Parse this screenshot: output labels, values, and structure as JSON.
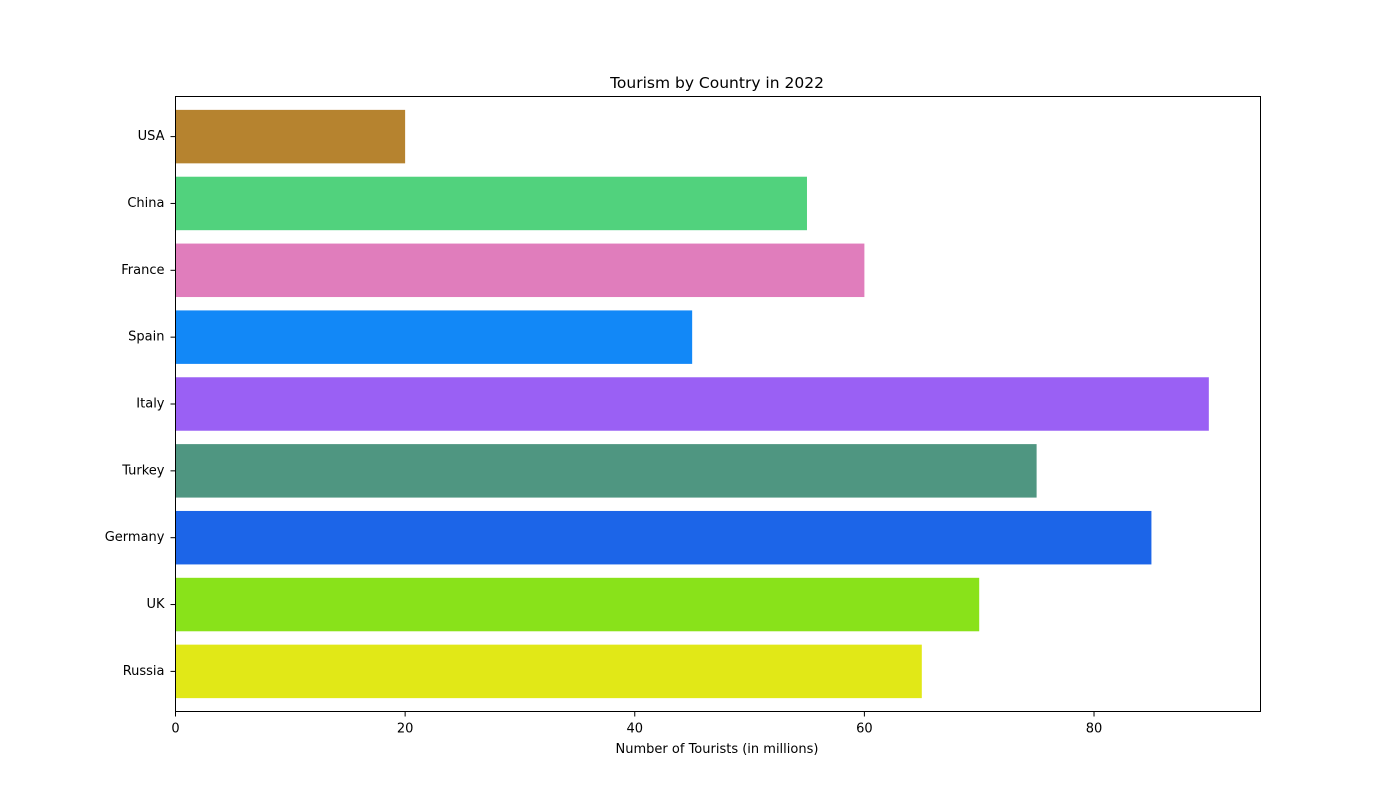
{
  "chart_data": {
    "type": "bar",
    "orientation": "horizontal",
    "title": "Tourism by Country in 2022",
    "xlabel": "Number of Tourists (in millions)",
    "ylabel": "",
    "categories": [
      "Russia",
      "UK",
      "Germany",
      "Turkey",
      "Italy",
      "Spain",
      "France",
      "China",
      "USA"
    ],
    "values": [
      65,
      70,
      85,
      75,
      90,
      45,
      60,
      55,
      20
    ],
    "colors": [
      "#e1e817",
      "#89e21a",
      "#1c65e8",
      "#4f9681",
      "#9a60f4",
      "#1288f7",
      "#e07dbc",
      "#51d27d",
      "#b6832f"
    ],
    "xlim": [
      0,
      94.5
    ],
    "xticks": [
      0,
      20,
      40,
      60,
      80
    ],
    "grid": false,
    "legend": "none"
  }
}
